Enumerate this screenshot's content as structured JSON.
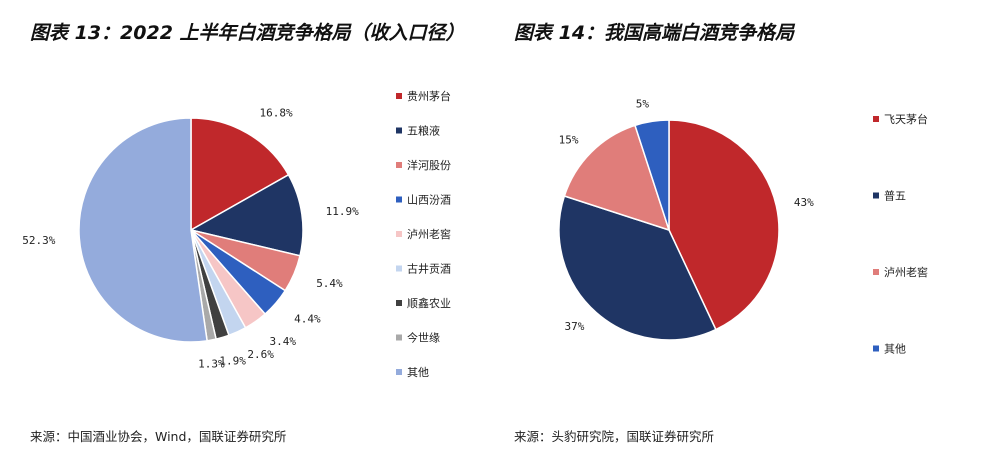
{
  "charts": [
    {
      "title": "图表 13：2022 上半年白酒竞争格局（收入口径）",
      "source": "来源：中国酒业协会，Wind，国联证券研究所"
    },
    {
      "title": "图表 14：我国高端白酒竞争格局",
      "source": "来源：头豹研究院，国联证券研究所"
    }
  ],
  "chart_data": [
    {
      "type": "pie",
      "title": "图表 13：2022 上半年白酒竞争格局（收入口径）",
      "legend_position": "right",
      "slices": [
        {
          "name": "贵州茅台",
          "value": 16.8,
          "label": "16.8%",
          "color": "#c0282b"
        },
        {
          "name": "五粮液",
          "value": 11.9,
          "label": "11.9%",
          "color": "#1f3564"
        },
        {
          "name": "洋河股份",
          "value": 5.4,
          "label": "5.4%",
          "color": "#e07d7a"
        },
        {
          "name": "山西汾酒",
          "value": 4.4,
          "label": "4.4%",
          "color": "#2e5fbf"
        },
        {
          "name": "泸州老窖",
          "value": 3.4,
          "label": "3.4%",
          "color": "#f6c6c6"
        },
        {
          "name": "古井贡酒",
          "value": 2.6,
          "label": "2.6%",
          "color": "#c3d5ef"
        },
        {
          "name": "顺鑫农业",
          "value": 1.9,
          "label": "1.9%",
          "color": "#404040"
        },
        {
          "name": "今世缘",
          "value": 1.3,
          "label": "1.3%",
          "color": "#a9a9a9"
        },
        {
          "name": "其他",
          "value": 52.3,
          "label": "52.3%",
          "color": "#94abdc"
        }
      ]
    },
    {
      "type": "pie",
      "title": "图表 14：我国高端白酒竞争格局",
      "legend_position": "right",
      "slices": [
        {
          "name": "飞天茅台",
          "value": 43,
          "label": "43%",
          "color": "#c0282b"
        },
        {
          "name": "普五",
          "value": 37,
          "label": "37%",
          "color": "#1f3564"
        },
        {
          "name": "泸州老窖",
          "value": 15,
          "label": "15%",
          "color": "#e07d7a"
        },
        {
          "name": "其他",
          "value": 5,
          "label": "5%",
          "color": "#2e5fbf"
        }
      ]
    }
  ]
}
